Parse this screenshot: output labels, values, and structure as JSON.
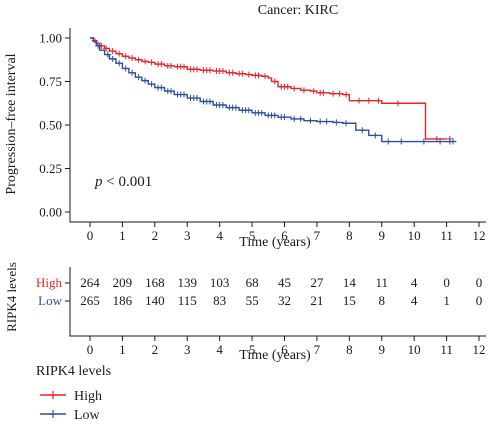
{
  "chart_data": {
    "type": "line",
    "title": "Cancer: KIRC",
    "xlabel": "Time (years)",
    "ylabel": "Progression–free interval",
    "xlim": [
      0,
      12
    ],
    "ylim": [
      0,
      1
    ],
    "x_ticks": [
      0,
      1,
      2,
      3,
      4,
      5,
      6,
      7,
      8,
      9,
      10,
      11,
      12
    ],
    "y_ticks": [
      "0.00",
      "0.25",
      "0.50",
      "0.75",
      "1.00"
    ],
    "annotation": {
      "italic": "p",
      "rest": " < 0.001"
    },
    "grid": false,
    "series": [
      {
        "name": "High",
        "color": "#e8232a",
        "x": [
          0,
          0.1,
          0.2,
          0.3,
          0.45,
          0.6,
          0.8,
          1.0,
          1.2,
          1.4,
          1.6,
          1.8,
          2.0,
          2.3,
          2.6,
          3.0,
          3.4,
          3.8,
          4.2,
          4.5,
          4.8,
          5.0,
          5.3,
          5.5,
          5.6,
          5.8,
          6.2,
          6.5,
          6.8,
          7.0,
          7.4,
          7.8,
          8.0,
          9.0,
          10.0,
          10.3,
          10.35,
          11.0
        ],
        "y": [
          1.0,
          0.985,
          0.97,
          0.955,
          0.94,
          0.925,
          0.91,
          0.895,
          0.885,
          0.875,
          0.865,
          0.86,
          0.85,
          0.84,
          0.835,
          0.82,
          0.815,
          0.81,
          0.8,
          0.795,
          0.79,
          0.785,
          0.78,
          0.77,
          0.75,
          0.72,
          0.71,
          0.7,
          0.695,
          0.685,
          0.68,
          0.675,
          0.64,
          0.625,
          0.625,
          0.625,
          0.42,
          0.42
        ],
        "censor_x": [
          0.15,
          0.35,
          0.5,
          0.7,
          0.9,
          1.1,
          1.3,
          1.5,
          1.7,
          1.9,
          2.1,
          2.2,
          2.4,
          2.5,
          2.7,
          2.8,
          2.9,
          3.1,
          3.2,
          3.3,
          3.5,
          3.6,
          3.7,
          3.9,
          4.0,
          4.1,
          4.3,
          4.4,
          4.6,
          4.7,
          4.9,
          5.1,
          5.2,
          5.4,
          5.7,
          5.9,
          6.0,
          6.1,
          6.3,
          6.6,
          6.9,
          7.1,
          7.2,
          7.5,
          7.7,
          7.9,
          8.3,
          8.6,
          8.9,
          9.5,
          10.7,
          11.1
        ]
      },
      {
        "name": "Low",
        "color": "#2d4fa1",
        "x": [
          0,
          0.1,
          0.2,
          0.3,
          0.45,
          0.6,
          0.8,
          1.0,
          1.2,
          1.4,
          1.6,
          1.8,
          2.0,
          2.3,
          2.6,
          3.0,
          3.4,
          3.8,
          4.2,
          4.6,
          5.0,
          5.4,
          5.8,
          6.2,
          6.6,
          7.0,
          7.5,
          7.8,
          8.2,
          8.6,
          9.0,
          10.0,
          11.0,
          11.3
        ],
        "y": [
          1.0,
          0.98,
          0.955,
          0.93,
          0.905,
          0.88,
          0.855,
          0.825,
          0.8,
          0.775,
          0.755,
          0.735,
          0.715,
          0.695,
          0.675,
          0.655,
          0.635,
          0.615,
          0.6,
          0.585,
          0.57,
          0.555,
          0.545,
          0.535,
          0.525,
          0.52,
          0.515,
          0.51,
          0.47,
          0.44,
          0.405,
          0.405,
          0.405,
          0.405
        ],
        "censor_x": [
          0.25,
          0.55,
          0.7,
          0.9,
          1.1,
          1.3,
          1.5,
          1.7,
          1.9,
          2.1,
          2.2,
          2.4,
          2.5,
          2.7,
          2.8,
          2.9,
          3.1,
          3.2,
          3.3,
          3.5,
          3.6,
          3.7,
          3.9,
          4.0,
          4.1,
          4.3,
          4.4,
          4.5,
          4.7,
          4.8,
          4.9,
          5.1,
          5.2,
          5.3,
          5.5,
          5.6,
          5.7,
          5.9,
          6.0,
          6.3,
          6.5,
          6.8,
          7.1,
          7.3,
          7.6,
          7.9,
          8.4,
          8.8,
          9.2,
          9.6,
          10.3,
          10.8,
          11.1,
          11.2
        ]
      }
    ]
  },
  "risk_table": {
    "title": "RIPK4 levels",
    "xlabel": "Time (years)",
    "x_ticks": [
      0,
      1,
      2,
      3,
      4,
      5,
      6,
      7,
      8,
      9,
      10,
      11,
      12
    ],
    "rows": [
      {
        "label": "High",
        "color": "#e8232a",
        "values": [
          264,
          209,
          168,
          139,
          103,
          68,
          45,
          27,
          14,
          11,
          4,
          0,
          0
        ]
      },
      {
        "label": "Low",
        "color": "#2d4fa1",
        "values": [
          265,
          186,
          140,
          115,
          83,
          55,
          32,
          21,
          15,
          8,
          4,
          1,
          0
        ]
      }
    ]
  },
  "legend": {
    "title": "RIPK4 levels",
    "placement": "bottom-left",
    "items": [
      {
        "label": "High",
        "color": "#e8232a"
      },
      {
        "label": "Low",
        "color": "#2d4fa1"
      }
    ]
  }
}
